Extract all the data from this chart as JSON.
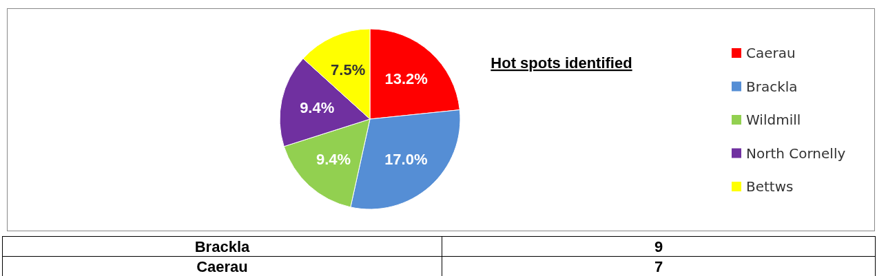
{
  "chart_data": [
    {
      "type": "pie",
      "title": "Hot spots identified",
      "categories": [
        "Caerau",
        "Brackla",
        "Wildmill",
        "North Cornelly",
        "Bettws"
      ],
      "values": [
        13.2,
        17.0,
        9.4,
        9.4,
        7.5
      ],
      "colors": [
        "#ff0000",
        "#558ed5",
        "#92d050",
        "#7030a0",
        "#ffff00"
      ],
      "value_labels": [
        "13.2%",
        "17.0%",
        "9.4%",
        "9.4%",
        "7.5%"
      ],
      "legend": "right"
    },
    {
      "type": "other",
      "categories": [
        "Brackla",
        "Caerau"
      ],
      "values": [
        9,
        7
      ],
      "data_labels": true
    }
  ]
}
